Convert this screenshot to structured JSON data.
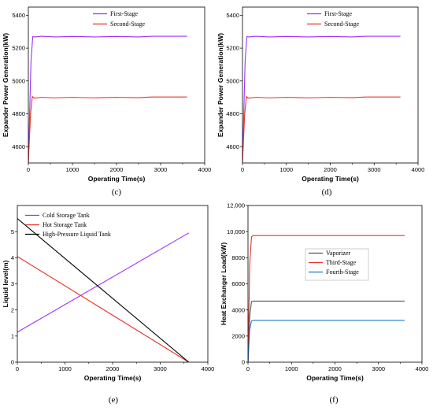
{
  "chart_data": [
    {
      "type": "line",
      "caption": "(c)",
      "xlabel": "Operating Time(s)",
      "ylabel": "Expander Power Generation(kW)",
      "xlim": [
        0,
        4000
      ],
      "ylim": [
        4500,
        5450
      ],
      "xticks": [
        "0",
        "1000",
        "2000",
        "3000",
        "4000"
      ],
      "xtick_values": [
        0,
        1000,
        2000,
        3000,
        4000
      ],
      "yticks": [
        "4600",
        "4800",
        "5000",
        "5200",
        "5400"
      ],
      "ytick_values": [
        4600,
        4800,
        5000,
        5200,
        5400
      ],
      "legend_position": "top-left",
      "series": [
        {
          "name": "First-Stage",
          "color": "#9b30ff",
          "x": [
            0,
            60,
            100,
            150,
            300,
            600,
            1000,
            1500,
            2000,
            2500,
            2800,
            3000,
            3600
          ],
          "y": [
            4500,
            5120,
            5270,
            5268,
            5272,
            5268,
            5271,
            5268,
            5271,
            5268,
            5272,
            5272,
            5272
          ]
        },
        {
          "name": "Second-Stage",
          "color": "#e8322a",
          "x": [
            0,
            50,
            90,
            130,
            300,
            600,
            1000,
            1500,
            2000,
            2500,
            2800,
            3000,
            3600
          ],
          "y": [
            4500,
            4800,
            4905,
            4895,
            4900,
            4897,
            4900,
            4897,
            4900,
            4898,
            4902,
            4902,
            4902
          ]
        }
      ]
    },
    {
      "type": "line",
      "caption": "(d)",
      "xlabel": "Operating Time(s)",
      "ylabel": "Expander Power Generation(kW)",
      "xlim": [
        0,
        4000
      ],
      "ylim": [
        4500,
        5450
      ],
      "xticks": [
        "0",
        "1000",
        "2000",
        "3000",
        "4000"
      ],
      "xtick_values": [
        0,
        1000,
        2000,
        3000,
        4000
      ],
      "yticks": [
        "4600",
        "4800",
        "5000",
        "5200",
        "5400"
      ],
      "ytick_values": [
        4600,
        4800,
        5000,
        5200,
        5400
      ],
      "legend_position": "top-right",
      "series": [
        {
          "name": "First-Stage",
          "color": "#9b30ff",
          "x": [
            0,
            60,
            100,
            150,
            300,
            600,
            1000,
            1500,
            2000,
            2500,
            2800,
            3000,
            3600
          ],
          "y": [
            4500,
            5120,
            5270,
            5268,
            5272,
            5268,
            5271,
            5268,
            5271,
            5268,
            5272,
            5272,
            5272
          ]
        },
        {
          "name": "Second-Stage",
          "color": "#e8322a",
          "x": [
            0,
            50,
            90,
            130,
            300,
            600,
            1000,
            1500,
            2000,
            2500,
            2800,
            3000,
            3600
          ],
          "y": [
            4500,
            4800,
            4905,
            4895,
            4900,
            4897,
            4900,
            4897,
            4900,
            4898,
            4902,
            4902,
            4902
          ]
        }
      ]
    },
    {
      "type": "line",
      "caption": "(e)",
      "xlabel": "Operating Time(s)",
      "ylabel": "Liquid level(m)",
      "xlim": [
        0,
        4000
      ],
      "ylim": [
        0,
        6
      ],
      "xticks": [
        "0",
        "1000",
        "2000",
        "3000",
        "4000"
      ],
      "xtick_values": [
        0,
        1000,
        2000,
        3000,
        4000
      ],
      "yticks": [
        "0",
        "1",
        "2",
        "3",
        "4",
        "5"
      ],
      "ytick_values": [
        0,
        1,
        2,
        3,
        4,
        5
      ],
      "legend_position": "top-left",
      "series": [
        {
          "name": "Cold Storage Tank",
          "color": "#9b30ff",
          "x": [
            0,
            3600
          ],
          "y": [
            1.15,
            4.95
          ]
        },
        {
          "name": "Hot Storage Tank",
          "color": "#e8322a",
          "x": [
            0,
            3600
          ],
          "y": [
            4.05,
            0.0
          ]
        },
        {
          "name": "High-Pressure Liquid Tank",
          "color": "#000000",
          "x": [
            0,
            3600
          ],
          "y": [
            5.5,
            0.0
          ]
        }
      ]
    },
    {
      "type": "line",
      "caption": "(f)",
      "xlabel": "Operating Time(s)",
      "ylabel": "Heat Exchanger Load(kW)",
      "xlim": [
        0,
        4000
      ],
      "ylim": [
        0,
        12000
      ],
      "xticks": [
        "0",
        "1000",
        "2000",
        "3000",
        "4000"
      ],
      "xtick_values": [
        0,
        1000,
        2000,
        3000,
        4000
      ],
      "yticks": [
        "0",
        "2000",
        "4000",
        "6000",
        "8000",
        "10,000",
        "12,000"
      ],
      "ytick_values": [
        0,
        2000,
        4000,
        6000,
        8000,
        10000,
        12000
      ],
      "legend_position": "center-right",
      "series": [
        {
          "name": "Vaporizer",
          "color": "#555555",
          "x": [
            0,
            40,
            80,
            120,
            3600
          ],
          "y": [
            0,
            3500,
            4650,
            4680,
            4680
          ]
        },
        {
          "name": "Third-Stage",
          "color": "#e8322a",
          "x": [
            0,
            40,
            80,
            120,
            3600
          ],
          "y": [
            0,
            7500,
            9600,
            9700,
            9700
          ]
        },
        {
          "name": "Fourth-Stage",
          "color": "#1f78d1",
          "x": [
            0,
            40,
            80,
            120,
            3600
          ],
          "y": [
            0,
            2500,
            3150,
            3200,
            3200
          ]
        }
      ]
    }
  ]
}
